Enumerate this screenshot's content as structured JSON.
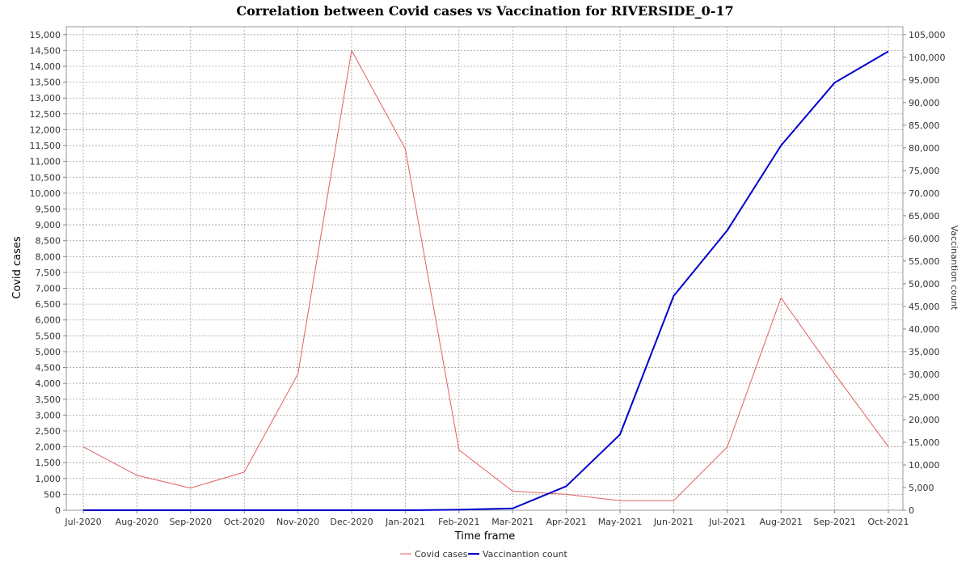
{
  "chart_data": {
    "type": "line",
    "title": "Correlation between Covid cases vs Vaccination for RIVERSIDE_0-17",
    "xlabel": "Time frame",
    "ylabel_left": "Covid cases",
    "ylabel_right": "Vaccinantion count",
    "categories": [
      "Jul-2020",
      "Aug-2020",
      "Sep-2020",
      "Oct-2020",
      "Nov-2020",
      "Dec-2020",
      "Jan-2021",
      "Feb-2021",
      "Mar-2021",
      "Apr-2021",
      "May-2021",
      "Jun-2021",
      "Jul-2021",
      "Aug-2021",
      "Sep-2021",
      "Oct-2021"
    ],
    "ylim_left": [
      0,
      15250
    ],
    "ylim_right": [
      0,
      106750
    ],
    "yticks_left": [
      "0",
      "500",
      "1,000",
      "1,500",
      "2,000",
      "2,500",
      "3,000",
      "3,500",
      "4,000",
      "4,500",
      "5,000",
      "5,500",
      "6,000",
      "6,500",
      "7,000",
      "7,500",
      "8,000",
      "8,500",
      "9,000",
      "9,500",
      "10,000",
      "10,500",
      "11,000",
      "11,500",
      "12,000",
      "12,500",
      "13,000",
      "13,500",
      "14,000",
      "14,500",
      "15,000"
    ],
    "yticks_right": [
      "0",
      "5,000",
      "10,000",
      "15,000",
      "20,000",
      "25,000",
      "30,000",
      "35,000",
      "40,000",
      "45,000",
      "50,000",
      "55,000",
      "60,000",
      "65,000",
      "70,000",
      "75,000",
      "80,000",
      "85,000",
      "90,000",
      "95,000",
      "100,000",
      "105,000"
    ],
    "grid": true,
    "legend_position": "bottom-center",
    "series": [
      {
        "name": "Covid cases",
        "axis": "left",
        "color": "#e06060",
        "values": [
          2000,
          1100,
          700,
          1200,
          4300,
          14500,
          11400,
          1900,
          600,
          500,
          300,
          300,
          2000,
          6700,
          4300,
          2000
        ]
      },
      {
        "name": "Vaccinantion count",
        "axis": "right",
        "color": "#0000cc",
        "values": [
          0,
          0,
          0,
          0,
          0,
          0,
          0,
          100,
          400,
          5300,
          16700,
          47300,
          61800,
          80500,
          94400,
          101300
        ]
      }
    ]
  }
}
